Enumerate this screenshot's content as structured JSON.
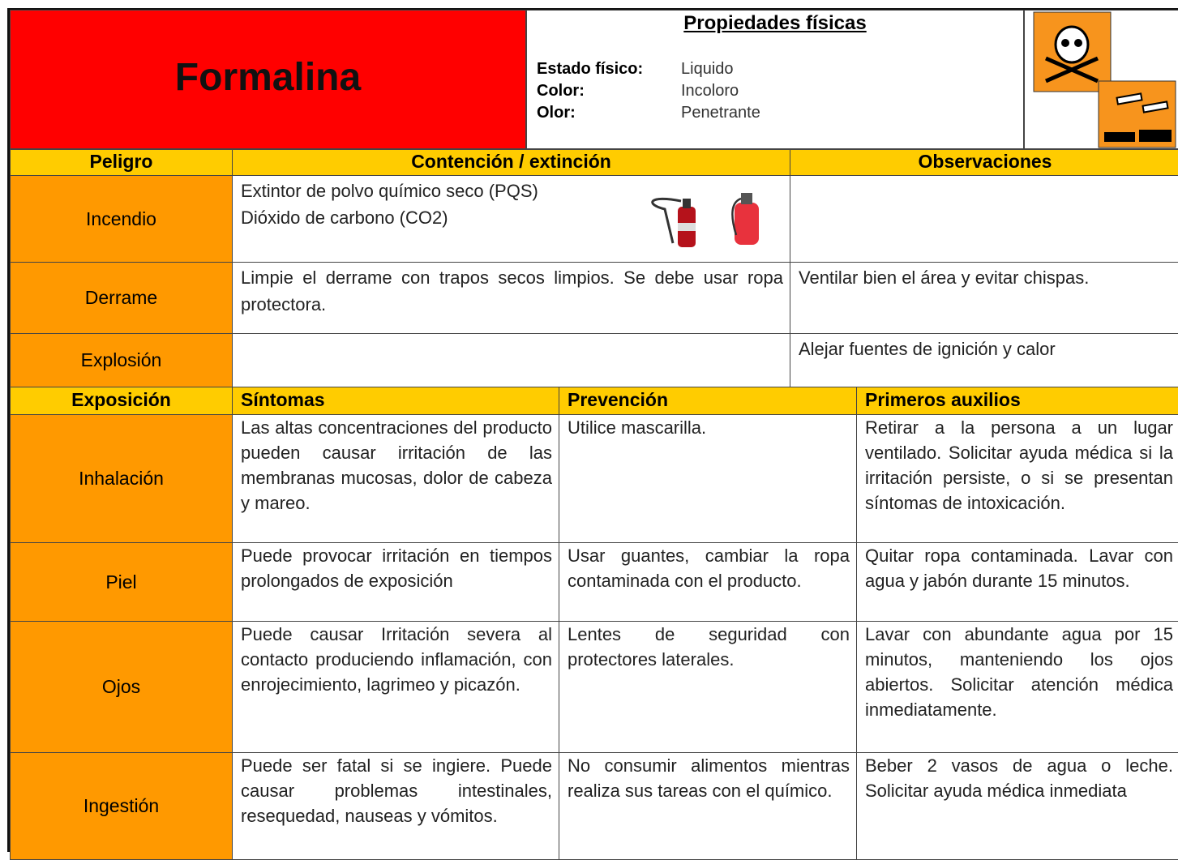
{
  "header": {
    "title": "Formalina",
    "properties_title": "Propiedades físicas",
    "properties": [
      {
        "label": "Estado físico:",
        "value": "Liquido"
      },
      {
        "label": "Color:",
        "value": "Incoloro"
      },
      {
        "label": "Olor:",
        "value": "Penetrante"
      }
    ]
  },
  "hazards": {
    "columns": [
      "Peligro",
      "Contención / extinción",
      "Observaciones"
    ],
    "rows": [
      {
        "name": "Incendio",
        "containment": [
          "Extintor de polvo químico seco (PQS)",
          "Dióxido de carbono (CO2)"
        ]
      },
      {
        "name": "Derrame",
        "containment": [
          "Limpie  el derrame con trapos secos limpios. Se debe usar ropa  protectora."
        ],
        "observations": "Ventilar bien el área y evitar chispas."
      },
      {
        "name": "Explosión",
        "observations": "Alejar  fuentes  de ignición y calor"
      }
    ]
  },
  "exposure": {
    "columns": [
      "Exposición",
      "Síntomas",
      "Prevención",
      "Primeros auxilios"
    ],
    "rows": [
      {
        "name": "Inhalación",
        "symptoms": "Las altas concentraciones del producto pueden causar irritación de las membranas mucosas, dolor de cabeza y mareo.",
        "prevention": "Utilice mascarilla.",
        "first_aid": "Retirar a la persona a un lugar ventilado. Solicitar ayuda médica si la irritación persiste, o si se presentan síntomas de intoxicación."
      },
      {
        "name": "Piel",
        "symptoms": "Puede provocar irritación en tiempos prolongados de exposición",
        "prevention": "Usar guantes, cambiar la ropa contaminada con el producto.",
        "first_aid": "Quitar ropa contaminada. Lavar con agua y jabón durante 15 minutos."
      },
      {
        "name": "Ojos",
        "symptoms": "Puede causar Irritación severa al contacto produciendo inflamación, con enrojecimiento, lagrimeo y picazón.",
        "prevention": "Lentes de seguridad con protectores laterales.",
        "first_aid": "Lavar con abundante agua por 15 minutos, manteniendo los ojos abiertos. Solicitar atención médica inmediatamente."
      },
      {
        "name": "Ingestión",
        "symptoms": "Puede ser fatal si se ingiere. Puede causar problemas intestinales, resequedad, nauseas y vómitos.",
        "prevention": "No consumir alimentos mientras realiza sus tareas con el químico.",
        "first_aid": "Beber 2 vasos de agua o leche. Solicitar ayuda médica inmediata"
      }
    ]
  }
}
